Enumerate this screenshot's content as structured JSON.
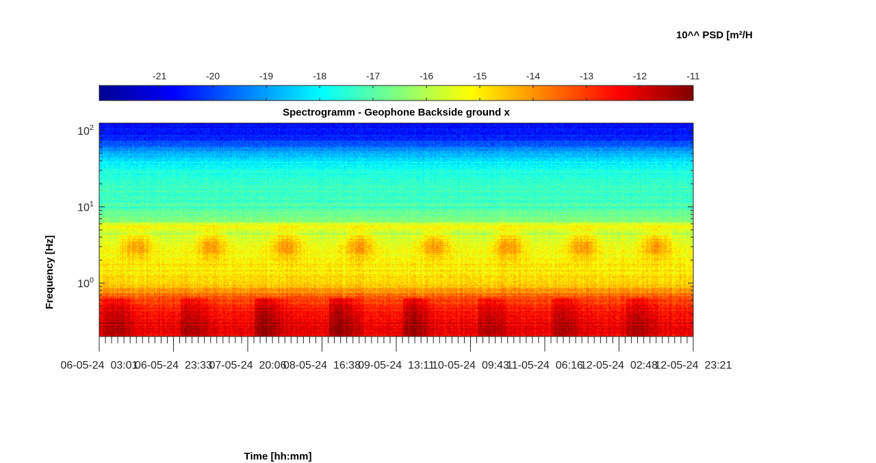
{
  "colorbar": {
    "title": "10^^ PSD [m²/H",
    "ticks": [
      -21,
      -20,
      -19,
      -18,
      -17,
      -16,
      -15,
      -14,
      -13,
      -12,
      -11
    ],
    "tick_labels": [
      "-21",
      "-20",
      "-19",
      "-18",
      "-17",
      "-16",
      "-15",
      "-14",
      "-13",
      "-12",
      "-11"
    ],
    "range": [
      -22.13,
      -11
    ],
    "colormap": "jet"
  },
  "chart_data": {
    "type": "heatmap",
    "title": "Spectrogramm - Geophone Backside ground x",
    "xlabel": "Time [hh:mm]",
    "ylabel": "Frequency [Hz]",
    "yscale": "log",
    "ylim": [
      0.2,
      125
    ],
    "xlim": [
      "06-05-24 03:01",
      "12-05-24 23:21"
    ],
    "x_tick_labels": [
      "06-05-24  03:01",
      "06-05-24  23:33",
      "07-05-24  20:06",
      "08-05-24  16:38",
      "09-05-24  13:11",
      "10-05-24  09:43",
      "11-05-24  06:16",
      "12-05-24  02:48",
      "12-05-24  23:21"
    ],
    "y_ticks": [
      {
        "base": "10",
        "exp": "0",
        "value": 1
      },
      {
        "base": "10",
        "exp": "1",
        "value": 10
      },
      {
        "base": "10",
        "exp": "2",
        "value": 100
      }
    ],
    "value_range": [
      -22.13,
      -11
    ],
    "spectral_profile": [
      {
        "f": 0.2,
        "level": -12.2
      },
      {
        "f": 0.3,
        "level": -12.3
      },
      {
        "f": 0.5,
        "level": -12.7
      },
      {
        "f": 0.7,
        "level": -13.6
      },
      {
        "f": 0.9,
        "level": -14.5
      },
      {
        "f": 1.1,
        "level": -14.9
      },
      {
        "f": 1.5,
        "level": -15.0
      },
      {
        "f": 2.5,
        "level": -15.2
      },
      {
        "f": 4.5,
        "level": -15.8
      },
      {
        "f": 5.5,
        "level": -15.2
      },
      {
        "f": 6.5,
        "level": -16.4
      },
      {
        "f": 10,
        "level": -17.2
      },
      {
        "f": 20,
        "level": -17.4
      },
      {
        "f": 35,
        "level": -17.8
      },
      {
        "f": 50,
        "level": -18.8
      },
      {
        "f": 80,
        "level": -20.4
      },
      {
        "f": 125,
        "level": -20.8
      }
    ]
  }
}
